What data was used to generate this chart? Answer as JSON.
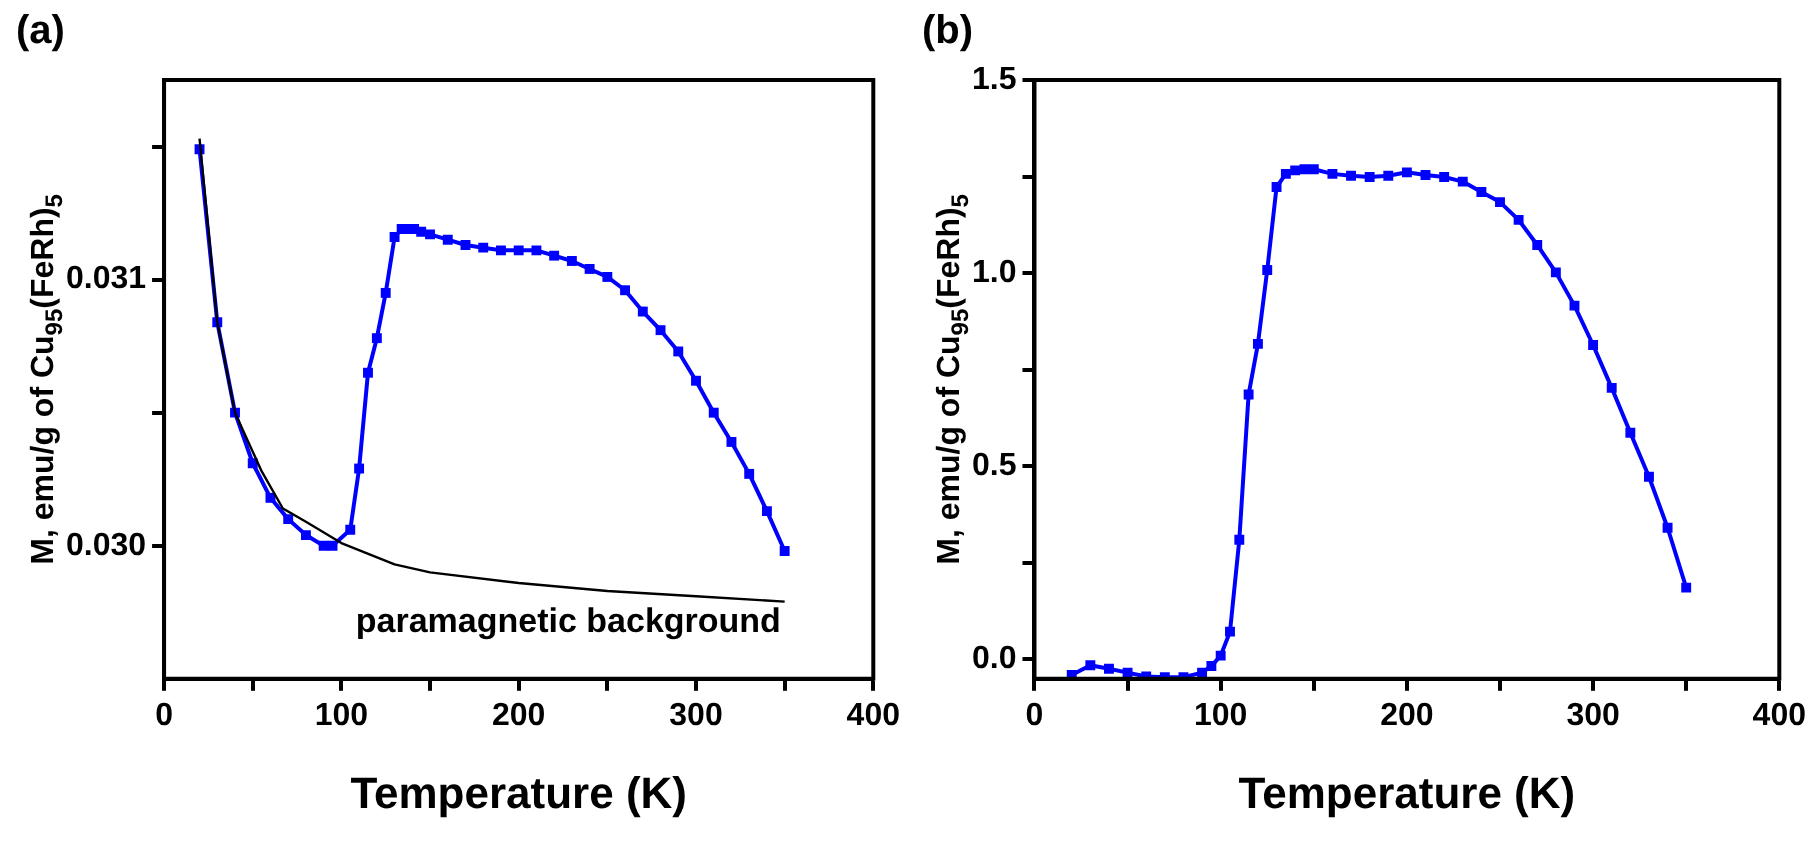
{
  "chart_data": [
    {
      "type": "line",
      "title": "(a)",
      "xlabel": "Temperature (K)",
      "ylabel": "M, emu/g of Cu$_{95}$(FeRh)$_{5}$",
      "xlim": [
        0,
        400
      ],
      "ylim": [
        0.0295,
        0.03175
      ],
      "xticks": [
        0,
        {
          "value": 50,
          "label": null
        },
        100,
        {
          "value": 150,
          "label": null
        },
        200,
        {
          "value": 250,
          "label": null
        },
        300,
        {
          "value": 350,
          "label": null
        },
        400
      ],
      "yticks": [
        {
          "value": 0.0305,
          "label": null
        },
        {
          "value": 0.03,
          "label": "0.030"
        },
        {
          "value": 0.031,
          "label": "0.031"
        },
        {
          "value": 0.0315,
          "label": null
        }
      ],
      "grid": false,
      "legend": false,
      "annotations": [
        "paramagnetic background"
      ],
      "series": [
        {
          "color": "#0000ff",
          "marker": "square",
          "x": [
            20,
            30,
            40,
            50,
            60,
            70,
            80,
            90,
            95,
            105,
            110,
            115,
            120,
            125,
            130,
            134,
            138,
            141,
            145,
            150,
            160,
            170,
            180,
            190,
            200,
            210,
            220,
            230,
            240,
            250,
            260,
            270,
            280,
            290,
            300,
            310,
            320,
            330,
            340,
            350
          ],
          "values": [
            0.03149,
            0.03084,
            0.0305,
            0.03031,
            0.03018,
            0.0301,
            0.03004,
            0.03,
            0.03,
            0.03006,
            0.03029,
            0.03065,
            0.03078,
            0.03095,
            0.03116,
            0.03119,
            0.03119,
            0.03119,
            0.03118,
            0.03117,
            0.03115,
            0.03113,
            0.03112,
            0.03111,
            0.03111,
            0.03111,
            0.03109,
            0.03107,
            0.03104,
            0.03101,
            0.03096,
            0.03088,
            0.03081,
            0.03073,
            0.03062,
            0.0305,
            0.03039,
            0.03027,
            0.03013,
            0.02998
          ]
        },
        {
          "color": "#000000",
          "marker": "none",
          "x": [
            20,
            30,
            40,
            55,
            67,
            80,
            100,
            130,
            150,
            200,
            250,
            300,
            350
          ],
          "values": [
            0.03153,
            0.03084,
            0.0305,
            0.03028,
            0.03014,
            0.03009,
            0.03001,
            0.02993,
            0.0299,
            0.02986,
            0.02983,
            0.02981,
            0.02979
          ]
        }
      ]
    },
    {
      "type": "line",
      "title": "(b)",
      "xlabel": "Temperature (K)",
      "ylabel": "M, emu/g of Cu$_{95}$(FeRh)$_{5}$",
      "xlim": [
        0,
        400
      ],
      "ylim": [
        -0.05,
        1.5
      ],
      "xticks": [
        0,
        {
          "value": 50,
          "label": null
        },
        100,
        {
          "value": 150,
          "label": null
        },
        200,
        {
          "value": 250,
          "label": null
        },
        300,
        {
          "value": 350,
          "label": null
        },
        400
      ],
      "yticks": [
        {
          "value": 0,
          "label": "0.0"
        },
        {
          "value": 0.25,
          "label": null
        },
        {
          "value": 0.5,
          "label": "0.5"
        },
        {
          "value": 0.75,
          "label": null
        },
        {
          "value": 1,
          "label": "1.0"
        },
        {
          "value": 1.25,
          "label": null
        },
        {
          "value": 1.5,
          "label": "1.5"
        }
      ],
      "grid": false,
      "legend": false,
      "series": [
        {
          "color": "#0000ff",
          "marker": "square",
          "x": [
            20,
            30,
            40,
            50,
            60,
            70,
            80,
            90,
            95,
            100,
            105,
            110,
            115,
            120,
            125,
            130,
            135,
            140,
            145,
            150,
            160,
            170,
            180,
            190,
            200,
            210,
            220,
            230,
            240,
            250,
            260,
            270,
            280,
            290,
            300,
            310,
            320,
            330,
            340,
            350
          ],
          "values": [
            -0.04,
            -0.015,
            -0.024,
            -0.034,
            -0.044,
            -0.046,
            -0.046,
            -0.034,
            -0.017,
            0.01,
            0.072,
            0.31,
            0.686,
            0.817,
            1.008,
            1.223,
            1.257,
            1.266,
            1.269,
            1.269,
            1.257,
            1.252,
            1.249,
            1.252,
            1.261,
            1.254,
            1.249,
            1.237,
            1.21,
            1.184,
            1.138,
            1.073,
            1.002,
            0.916,
            0.814,
            0.703,
            0.587,
            0.473,
            0.341,
            0.186
          ]
        }
      ]
    }
  ]
}
